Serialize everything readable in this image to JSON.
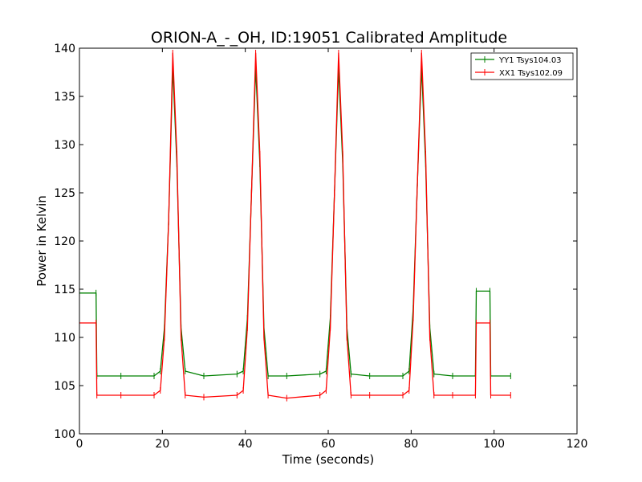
{
  "chart_data": {
    "type": "line",
    "title": "ORION-A_-_OH, ID:19051 Calibrated Amplitude",
    "xlabel": "Time (seconds)",
    "ylabel": "Power in Kelvin",
    "xlim": [
      0,
      120
    ],
    "ylim": [
      100,
      140
    ],
    "xticks": [
      0,
      20,
      40,
      60,
      80,
      100,
      120
    ],
    "yticks": [
      100,
      105,
      110,
      115,
      120,
      125,
      130,
      135,
      140
    ],
    "grid": false,
    "legend_position": "top-right",
    "series": [
      {
        "name": "YY1 Tsys104.03",
        "color": "#008000",
        "x": [
          0,
          4,
          4.2,
          10,
          18,
          19.5,
          20.5,
          21.5,
          22.5,
          23.5,
          24.5,
          25.5,
          30,
          38,
          39.5,
          40.5,
          41.5,
          42.5,
          43.5,
          44.5,
          45.5,
          50,
          58,
          59.5,
          60.5,
          61.5,
          62.5,
          63.5,
          64.5,
          65.5,
          70,
          78,
          79.5,
          80.5,
          81.5,
          82.5,
          83.5,
          84.5,
          85.5,
          90,
          95.5,
          95.7,
          99,
          99.2,
          104
        ],
        "y": [
          114.6,
          114.6,
          106,
          106,
          106,
          106.5,
          111,
          122,
          138,
          128,
          111,
          106.5,
          106,
          106.2,
          106.5,
          112,
          125,
          138,
          128,
          111,
          106,
          106,
          106.2,
          106.5,
          112,
          125,
          138,
          128,
          111,
          106.2,
          106,
          106,
          106.5,
          113,
          126,
          138,
          128,
          111,
          106.2,
          106,
          106,
          114.8,
          114.8,
          106,
          106
        ]
      },
      {
        "name": "XX1 Tsys102.09",
        "color": "#ff0000",
        "x": [
          0,
          4,
          4.2,
          10,
          18,
          19.5,
          20.5,
          21.5,
          22.5,
          23.5,
          24.5,
          25.5,
          30,
          38,
          39.5,
          40.5,
          41.5,
          42.5,
          43.5,
          44.5,
          45.5,
          50,
          58,
          59.5,
          60.5,
          61.5,
          62.5,
          63.5,
          64.5,
          65.5,
          70,
          78,
          79.5,
          80.5,
          81.5,
          82.5,
          83.5,
          84.5,
          85.5,
          90,
          95.5,
          95.7,
          99,
          99.2,
          104
        ],
        "y": [
          111.5,
          111.5,
          104,
          104,
          104,
          104.5,
          110,
          122,
          139.5,
          129,
          110,
          104,
          103.8,
          104,
          104.5,
          111,
          125,
          139.5,
          129,
          110,
          104,
          103.7,
          104,
          104.5,
          111,
          125,
          139.5,
          129,
          110,
          104,
          104,
          104,
          104.5,
          112,
          126,
          139.5,
          129,
          110,
          104,
          104,
          104,
          111.5,
          111.5,
          104,
          104
        ]
      }
    ]
  }
}
